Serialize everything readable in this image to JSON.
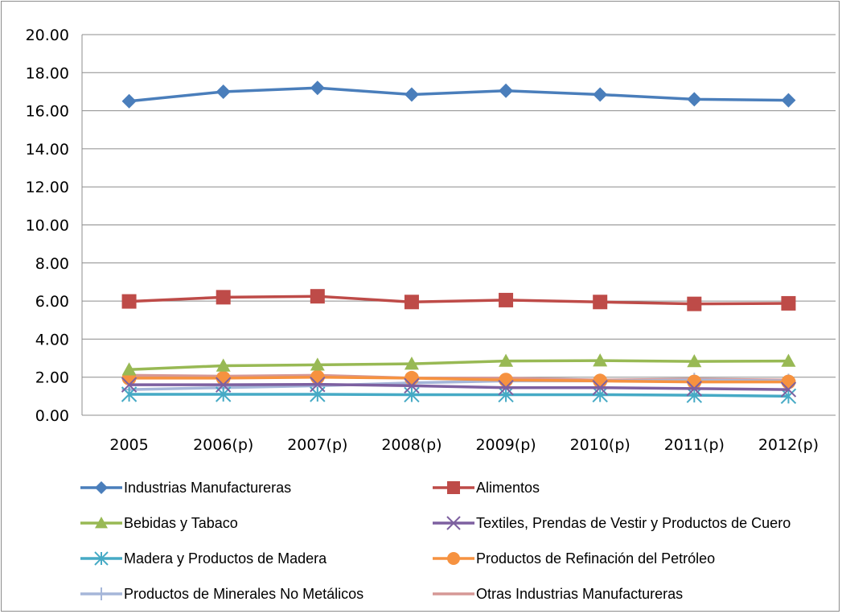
{
  "chart_data": {
    "type": "line",
    "title": "",
    "xlabel": "",
    "ylabel": "",
    "categories": [
      "2005",
      "2006(p)",
      "2007(p)",
      "2008(p)",
      "2009(p)",
      "2010(p)",
      "2011(p)",
      "2012(p)"
    ],
    "ylim": [
      0,
      20
    ],
    "yticks": [
      "0.00",
      "2.00",
      "4.00",
      "6.00",
      "8.00",
      "10.00",
      "12.00",
      "14.00",
      "16.00",
      "18.00",
      "20.00"
    ],
    "grid": true,
    "legend_position": "bottom",
    "series": [
      {
        "name": "Industrias Manufactureras",
        "color": "#4a7ebb",
        "marker": "diamond",
        "values": [
          16.5,
          17.0,
          17.2,
          16.85,
          17.05,
          16.85,
          16.6,
          16.55
        ]
      },
      {
        "name": "Alimentos",
        "color": "#be4b48",
        "marker": "square",
        "values": [
          5.98,
          6.2,
          6.25,
          5.95,
          6.05,
          5.95,
          5.85,
          5.88
        ]
      },
      {
        "name": "Bebidas y Tabaco",
        "color": "#98b954",
        "marker": "triangle",
        "values": [
          2.4,
          2.6,
          2.65,
          2.7,
          2.85,
          2.87,
          2.83,
          2.85
        ]
      },
      {
        "name": "Textiles, Prendas de Vestir y Productos de Cuero",
        "color": "#7d60a0",
        "marker": "x",
        "values": [
          1.6,
          1.6,
          1.62,
          1.55,
          1.45,
          1.45,
          1.4,
          1.35
        ]
      },
      {
        "name": "Madera y Productos de Madera",
        "color": "#46aac5",
        "marker": "asterisk",
        "values": [
          1.1,
          1.1,
          1.1,
          1.08,
          1.08,
          1.08,
          1.05,
          1.0
        ]
      },
      {
        "name": "Productos de Refinación del Petróleo",
        "color": "#f69240",
        "marker": "circle",
        "values": [
          1.95,
          1.95,
          2.0,
          1.95,
          1.85,
          1.8,
          1.75,
          1.75
        ]
      },
      {
        "name": "Productos de Minerales No Metálicos",
        "color": "#a5b6d9",
        "marker": "plus",
        "values": [
          1.35,
          1.45,
          1.55,
          1.7,
          1.8,
          1.8,
          1.85,
          1.8
        ]
      },
      {
        "name": "Otras Industrias Manufactureras",
        "color": "#d69896",
        "marker": "none",
        "values": [
          2.1,
          2.05,
          2.1,
          1.95,
          1.95,
          1.85,
          1.9,
          1.85
        ]
      }
    ]
  }
}
